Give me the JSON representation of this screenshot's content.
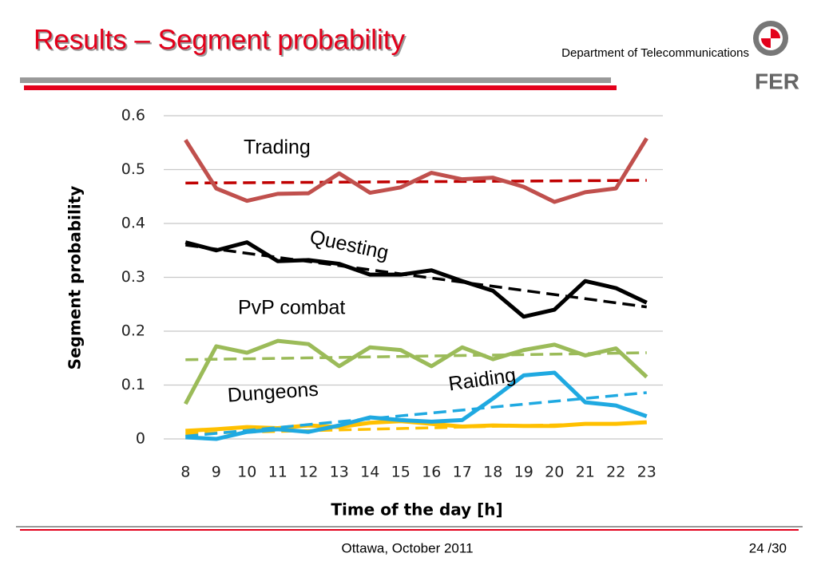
{
  "header": {
    "title": "Results – Segment probability",
    "department": "Department of Telecommunications",
    "logo": "FER"
  },
  "footer": {
    "place": "Ottawa, October 2011",
    "page": "24 /30"
  },
  "chart_data": {
    "type": "line",
    "xlabel": "Time of the day [h]",
    "ylabel": "Segment probability",
    "categories": [
      "8",
      "9",
      "10",
      "11",
      "12",
      "13",
      "14",
      "15",
      "16",
      "17",
      "18",
      "19",
      "20",
      "21",
      "22",
      "23"
    ],
    "ylim": [
      0,
      0.6
    ],
    "yticks": [
      0,
      0.1,
      0.2,
      0.3,
      0.4,
      0.5,
      0.6
    ],
    "grid": true,
    "series": [
      {
        "name": "Trading",
        "color": "#c0504d",
        "trend_color": "#c00000",
        "values": [
          0.555,
          0.465,
          0.442,
          0.455,
          0.456,
          0.493,
          0.457,
          0.467,
          0.494,
          0.482,
          0.485,
          0.468,
          0.44,
          0.458,
          0.465,
          0.558
        ],
        "trend": [
          0.475,
          0.48
        ]
      },
      {
        "name": "Questing",
        "color": "#000000",
        "trend_color": "#000000",
        "values": [
          0.365,
          0.35,
          0.365,
          0.33,
          0.332,
          0.325,
          0.305,
          0.305,
          0.313,
          0.293,
          0.275,
          0.227,
          0.24,
          0.293,
          0.28,
          0.253
        ],
        "trend": [
          0.36,
          0.245
        ]
      },
      {
        "name": "PvP combat",
        "color": "#9bbb59",
        "trend_color": "#9bbb59",
        "values": [
          0.065,
          0.172,
          0.16,
          0.182,
          0.176,
          0.135,
          0.17,
          0.165,
          0.135,
          0.17,
          0.148,
          0.165,
          0.175,
          0.155,
          0.168,
          0.115
        ],
        "trend": [
          0.147,
          0.16
        ]
      },
      {
        "name": "Raiding",
        "color": "#1fa9e1",
        "trend_color": "#1fa9e1",
        "values": [
          0.003,
          0.0,
          0.013,
          0.018,
          0.013,
          0.025,
          0.04,
          0.035,
          0.032,
          0.035,
          0.075,
          0.118,
          0.123,
          0.068,
          0.062,
          0.042
        ],
        "trend": [
          0.005,
          0.086
        ]
      },
      {
        "name": "Dungeons",
        "color": "#ffc000",
        "trend_color": "#ffc000",
        "values": [
          0.015,
          0.018,
          0.022,
          0.02,
          0.025,
          0.022,
          0.03,
          0.033,
          0.028,
          0.023,
          0.025,
          0.024,
          0.024,
          0.028,
          0.028,
          0.031
        ],
        "trend": [
          0.01,
          0.03
        ]
      }
    ]
  }
}
